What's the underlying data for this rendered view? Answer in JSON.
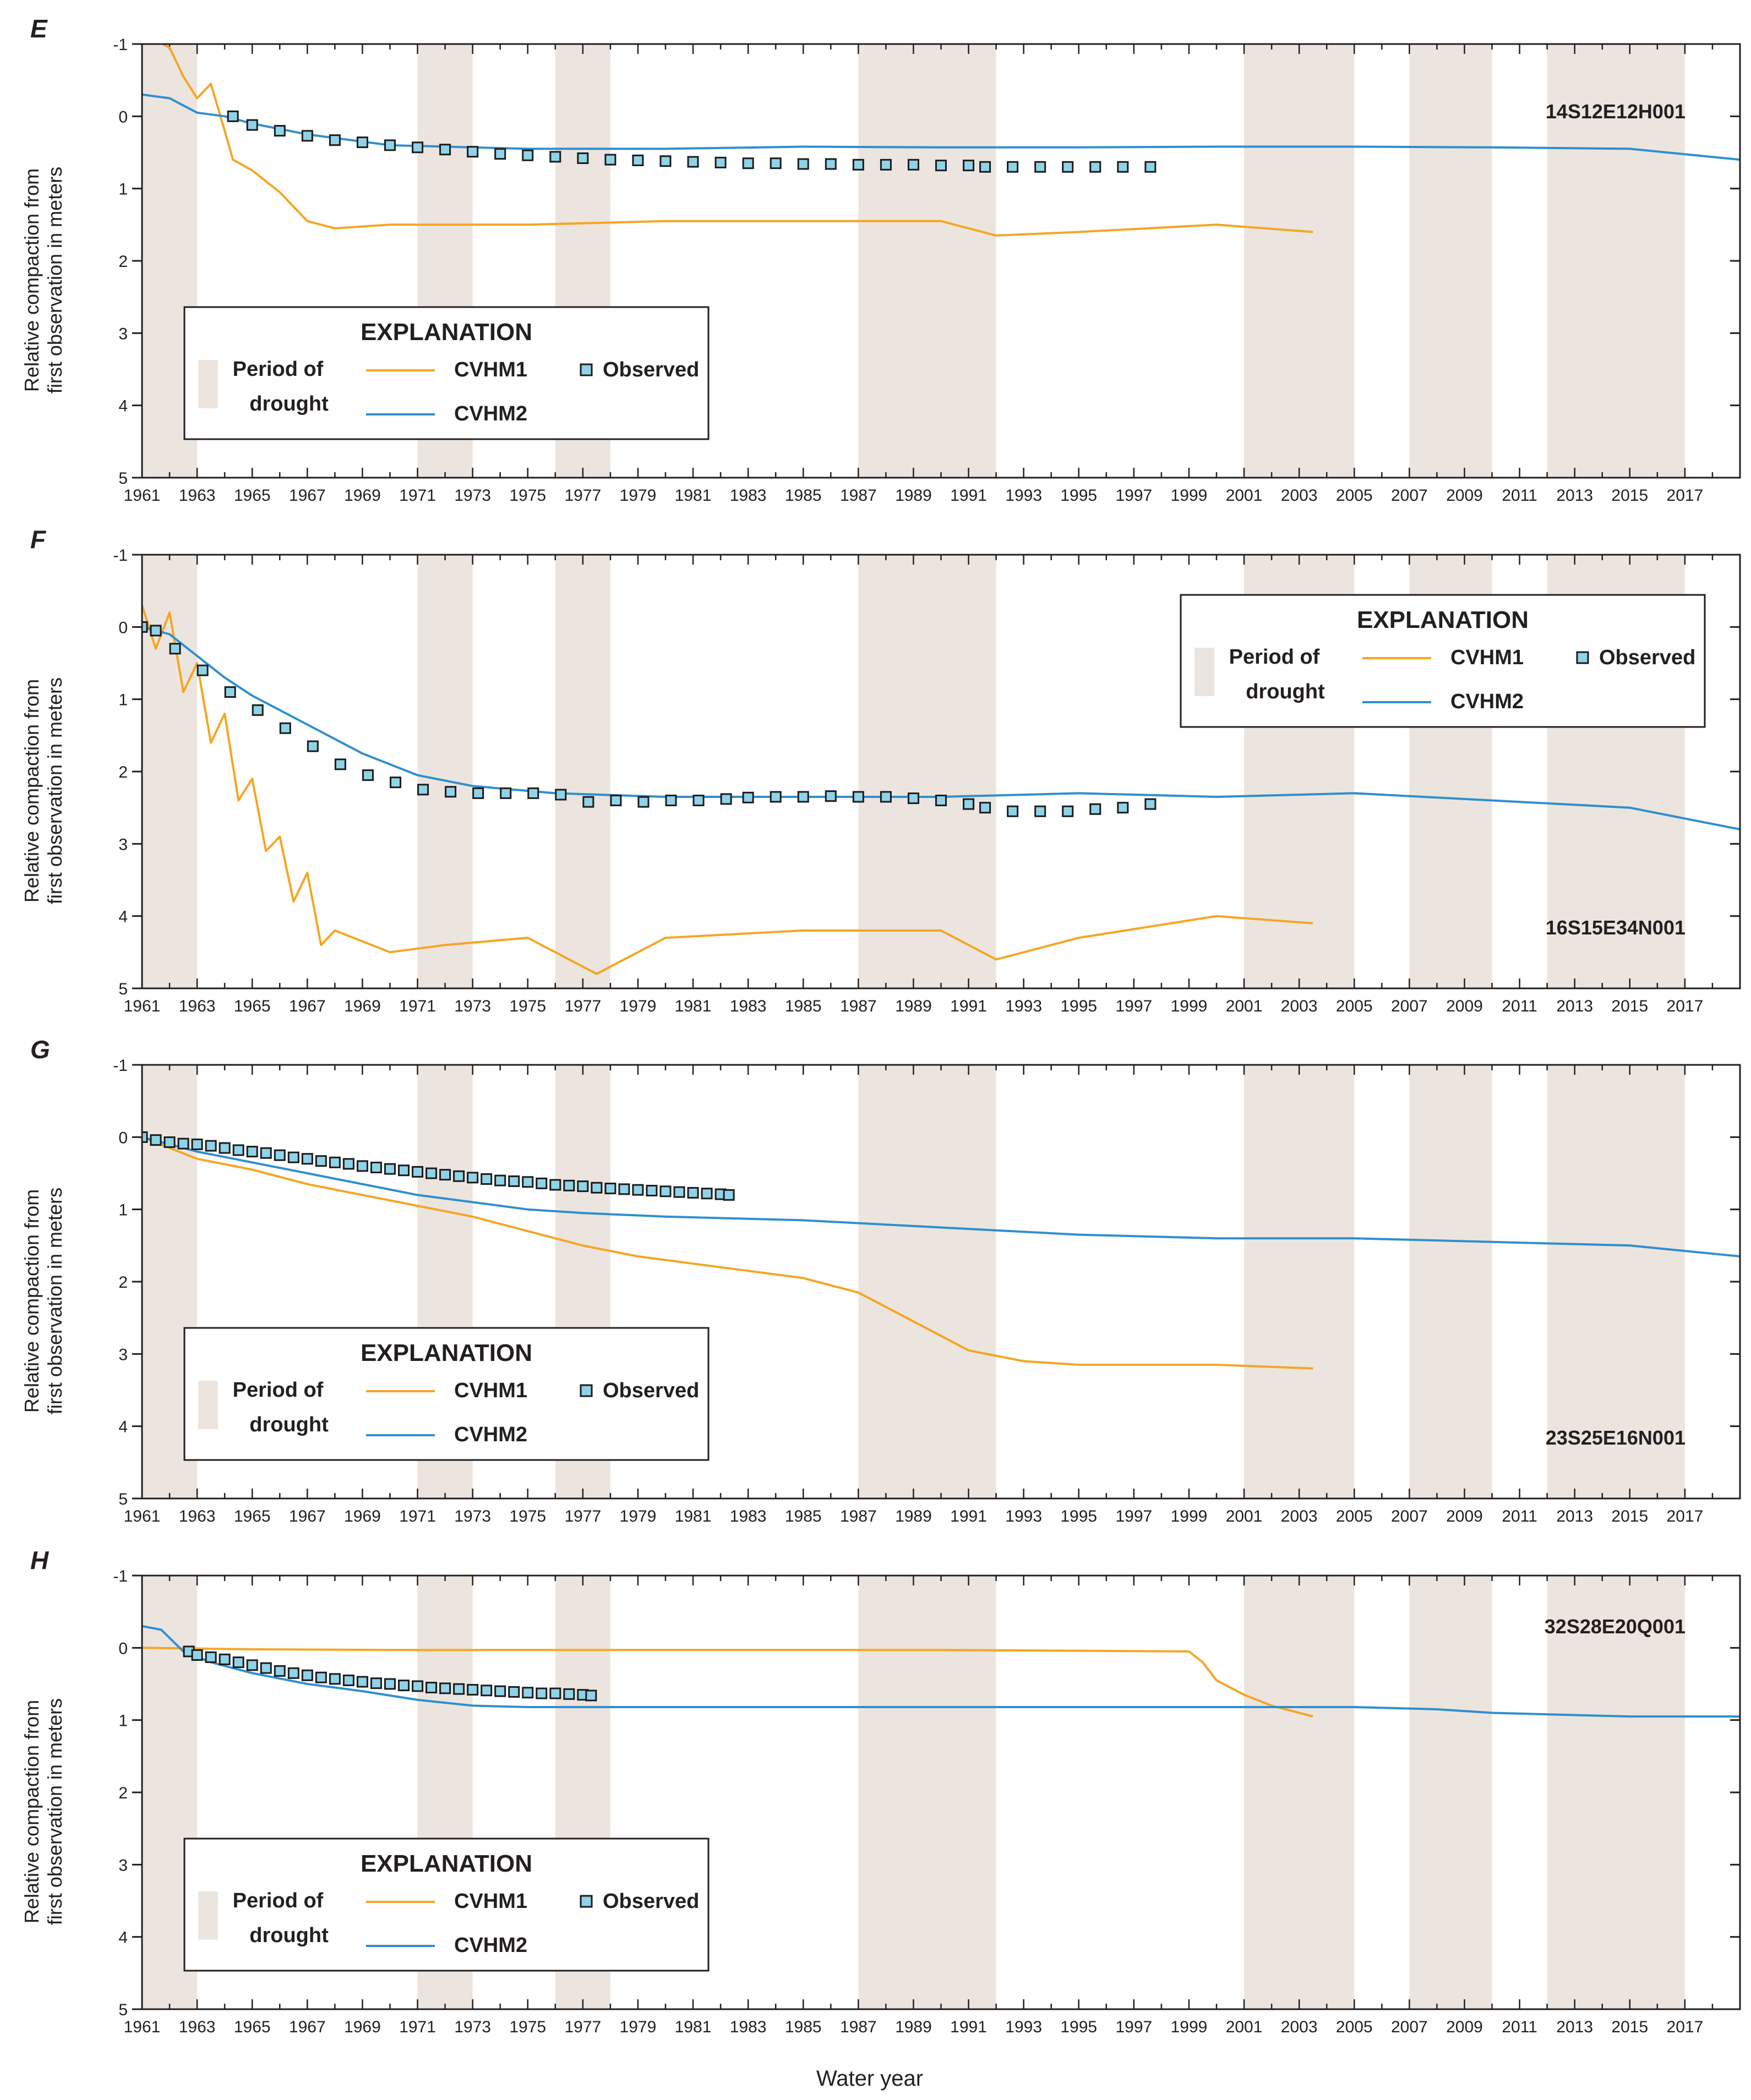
{
  "figure": {
    "xlabel": "Water year",
    "ylabel_line1": "Relative compaction from",
    "ylabel_line2": "first observation in meters"
  },
  "legend": {
    "title": "EXPLANATION",
    "drought_line1": "Period of",
    "drought_line2": "drought",
    "cvhm1": "CVHM1",
    "cvhm2": "CVHM2",
    "observed": "Observed"
  },
  "colors": {
    "cvhm1": "#f5a623",
    "cvhm2": "#2f8fcf",
    "observed_fill": "#8fd3e8",
    "observed_edge": "#1b1b1b",
    "drought": "#ece5df",
    "axis": "#231f20"
  },
  "chart_data": [
    {
      "type": "line",
      "panel": "E",
      "well": "14S12E12H001",
      "x_range": [
        1961,
        2019
      ],
      "ylim": [
        -1,
        5
      ],
      "y_ticks": [
        -1,
        0,
        1,
        2,
        3,
        4,
        5
      ],
      "y_inverted": true,
      "x_tick_labels": [
        "1961",
        "1963",
        "1965",
        "1967",
        "1969",
        "1971",
        "1973",
        "1975",
        "1977",
        "1979",
        "1981",
        "1983",
        "1985",
        "1987",
        "1989",
        "1991",
        "1993",
        "1995",
        "1997",
        "1999",
        "2001",
        "2003",
        "2005",
        "2007",
        "2009",
        "2011",
        "2013",
        "2015",
        "2017"
      ],
      "drought_periods": [
        [
          1961,
          1963
        ],
        [
          1971,
          1973
        ],
        [
          1976,
          1978
        ],
        [
          1987,
          1992
        ],
        [
          2001,
          2005
        ],
        [
          2007,
          2010
        ],
        [
          2012,
          2017
        ]
      ],
      "legend_position": "bottom-left",
      "series": [
        {
          "name": "CVHM1",
          "x": [
            1961,
            1961.5,
            1962,
            1962.5,
            1963,
            1963.5,
            1964,
            1964.3,
            1965,
            1966,
            1967,
            1968,
            1970,
            1975,
            1980,
            1985,
            1990,
            1992,
            1995,
            2000,
            2003.5
          ],
          "y": [
            -1.0,
            -1.05,
            -0.95,
            -0.55,
            -0.25,
            -0.45,
            0.2,
            0.6,
            0.75,
            1.05,
            1.45,
            1.55,
            1.5,
            1.5,
            1.45,
            1.45,
            1.45,
            1.65,
            1.6,
            1.5,
            1.6
          ]
        },
        {
          "name": "CVHM2",
          "x": [
            1961,
            1962,
            1963,
            1964,
            1965,
            1967,
            1970,
            1975,
            1980,
            1985,
            1990,
            1995,
            2000,
            2005,
            2010,
            2015,
            2019
          ],
          "y": [
            -0.3,
            -0.25,
            -0.05,
            0.0,
            0.1,
            0.25,
            0.4,
            0.45,
            0.45,
            0.42,
            0.43,
            0.43,
            0.42,
            0.42,
            0.43,
            0.45,
            0.6
          ]
        },
        {
          "name": "Observed",
          "x": [
            1964.3,
            1965,
            1966,
            1967,
            1968,
            1969,
            1970,
            1971,
            1972,
            1973,
            1974,
            1975,
            1976,
            1977,
            1978,
            1979,
            1980,
            1981,
            1982,
            1983,
            1984,
            1985,
            1986,
            1987,
            1988,
            1989,
            1990,
            1991,
            1991.6,
            1992.6,
            1993.6,
            1994.6,
            1995.6,
            1996.6,
            1997.6
          ],
          "y": [
            0.0,
            0.12,
            0.2,
            0.27,
            0.33,
            0.36,
            0.4,
            0.43,
            0.46,
            0.49,
            0.52,
            0.54,
            0.56,
            0.58,
            0.6,
            0.61,
            0.62,
            0.63,
            0.64,
            0.65,
            0.65,
            0.66,
            0.66,
            0.67,
            0.67,
            0.67,
            0.68,
            0.68,
            0.7,
            0.7,
            0.7,
            0.7,
            0.7,
            0.7,
            0.7
          ]
        }
      ]
    },
    {
      "type": "line",
      "panel": "F",
      "well": "16S15E34N001",
      "x_range": [
        1961,
        2019
      ],
      "ylim": [
        -1,
        5
      ],
      "y_ticks": [
        -1,
        0,
        1,
        2,
        3,
        4,
        5
      ],
      "y_inverted": true,
      "x_tick_labels": [
        "1961",
        "1963",
        "1965",
        "1967",
        "1969",
        "1971",
        "1973",
        "1975",
        "1977",
        "1979",
        "1981",
        "1983",
        "1985",
        "1987",
        "1989",
        "1991",
        "1993",
        "1995",
        "1997",
        "1999",
        "2001",
        "2003",
        "2005",
        "2007",
        "2009",
        "2011",
        "2013",
        "2015",
        "2017"
      ],
      "drought_periods": [
        [
          1961,
          1963
        ],
        [
          1971,
          1973
        ],
        [
          1976,
          1978
        ],
        [
          1987,
          1992
        ],
        [
          2001,
          2005
        ],
        [
          2007,
          2010
        ],
        [
          2012,
          2017
        ]
      ],
      "legend_position": "top-right",
      "series": [
        {
          "name": "CVHM1",
          "x": [
            1961,
            1961.5,
            1962,
            1962.5,
            1963,
            1963.5,
            1964,
            1964.5,
            1965,
            1965.5,
            1966,
            1966.5,
            1967,
            1967.5,
            1968,
            1970,
            1972,
            1975,
            1977.5,
            1980,
            1985,
            1990,
            1992,
            1995,
            2000,
            2003.5
          ],
          "y": [
            -0.3,
            0.3,
            -0.2,
            0.9,
            0.5,
            1.6,
            1.2,
            2.4,
            2.1,
            3.1,
            2.9,
            3.8,
            3.4,
            4.4,
            4.2,
            4.5,
            4.4,
            4.3,
            4.8,
            4.3,
            4.2,
            4.2,
            4.6,
            4.3,
            4.0,
            4.1
          ]
        },
        {
          "name": "CVHM2",
          "x": [
            1961,
            1962,
            1963,
            1964,
            1965,
            1967,
            1969,
            1971,
            1973,
            1976,
            1980,
            1985,
            1990,
            1995,
            2000,
            2005,
            2010,
            2015,
            2019
          ],
          "y": [
            0.0,
            0.1,
            0.4,
            0.7,
            0.95,
            1.35,
            1.75,
            2.05,
            2.2,
            2.3,
            2.35,
            2.35,
            2.35,
            2.3,
            2.35,
            2.3,
            2.4,
            2.5,
            2.8
          ]
        },
        {
          "name": "Observed",
          "x": [
            1961,
            1961.5,
            1962.2,
            1963.2,
            1964.2,
            1965.2,
            1966.2,
            1967.2,
            1968.2,
            1969.2,
            1970.2,
            1971.2,
            1972.2,
            1973.2,
            1974.2,
            1975.2,
            1976.2,
            1977.2,
            1978.2,
            1979.2,
            1980.2,
            1981.2,
            1982.2,
            1983,
            1984,
            1985,
            1986,
            1987,
            1988,
            1989,
            1990,
            1991,
            1991.6,
            1992.6,
            1993.6,
            1994.6,
            1995.6,
            1996.6,
            1997.6
          ],
          "y": [
            0.0,
            0.05,
            0.3,
            0.6,
            0.9,
            1.15,
            1.4,
            1.65,
            1.9,
            2.05,
            2.15,
            2.25,
            2.28,
            2.3,
            2.3,
            2.3,
            2.32,
            2.42,
            2.4,
            2.42,
            2.4,
            2.4,
            2.38,
            2.36,
            2.35,
            2.35,
            2.34,
            2.35,
            2.35,
            2.37,
            2.4,
            2.45,
            2.5,
            2.55,
            2.55,
            2.55,
            2.52,
            2.5,
            2.45
          ]
        }
      ]
    },
    {
      "type": "line",
      "panel": "G",
      "well": "23S25E16N001",
      "x_range": [
        1961,
        2019
      ],
      "ylim": [
        -1,
        5
      ],
      "y_ticks": [
        -1,
        0,
        1,
        2,
        3,
        4,
        5
      ],
      "y_inverted": true,
      "x_tick_labels": [
        "1961",
        "1963",
        "1965",
        "1967",
        "1969",
        "1971",
        "1973",
        "1975",
        "1977",
        "1979",
        "1981",
        "1983",
        "1985",
        "1987",
        "1989",
        "1991",
        "1993",
        "1995",
        "1997",
        "1999",
        "2001",
        "2003",
        "2005",
        "2007",
        "2009",
        "2011",
        "2013",
        "2015",
        "2017"
      ],
      "drought_periods": [
        [
          1961,
          1963
        ],
        [
          1971,
          1973
        ],
        [
          1976,
          1978
        ],
        [
          1987,
          1992
        ],
        [
          2001,
          2005
        ],
        [
          2007,
          2010
        ],
        [
          2012,
          2017
        ]
      ],
      "legend_position": "bottom-left",
      "series": [
        {
          "name": "CVHM1",
          "x": [
            1961,
            1963,
            1965,
            1967,
            1969,
            1971,
            1973,
            1975,
            1977,
            1979,
            1981,
            1983,
            1985,
            1987,
            1989,
            1991,
            1993,
            1995,
            1997,
            2000,
            2003.5
          ],
          "y": [
            0.0,
            0.3,
            0.45,
            0.65,
            0.8,
            0.95,
            1.1,
            1.3,
            1.5,
            1.65,
            1.75,
            1.85,
            1.95,
            2.15,
            2.55,
            2.95,
            3.1,
            3.15,
            3.15,
            3.15,
            3.2
          ]
        },
        {
          "name": "CVHM2",
          "x": [
            1961,
            1963,
            1965,
            1967,
            1969,
            1971,
            1973,
            1975,
            1977,
            1980,
            1985,
            1990,
            1995,
            2000,
            2005,
            2010,
            2015,
            2019
          ],
          "y": [
            0.0,
            0.2,
            0.35,
            0.5,
            0.65,
            0.8,
            0.9,
            1.0,
            1.05,
            1.1,
            1.15,
            1.25,
            1.35,
            1.4,
            1.4,
            1.45,
            1.5,
            1.65
          ]
        },
        {
          "name": "Observed",
          "x": [
            1961,
            1961.5,
            1962,
            1962.5,
            1963,
            1963.5,
            1964,
            1964.5,
            1965,
            1965.5,
            1966,
            1966.5,
            1967,
            1967.5,
            1968,
            1968.5,
            1969,
            1969.5,
            1970,
            1970.5,
            1971,
            1971.5,
            1972,
            1972.5,
            1973,
            1973.5,
            1974,
            1974.5,
            1975,
            1975.5,
            1976,
            1976.5,
            1977,
            1977.5,
            1978,
            1978.5,
            1979,
            1979.5,
            1980,
            1980.5,
            1981,
            1981.5,
            1982,
            1982.3
          ],
          "y": [
            0.0,
            0.04,
            0.07,
            0.09,
            0.1,
            0.12,
            0.15,
            0.18,
            0.2,
            0.22,
            0.25,
            0.28,
            0.3,
            0.33,
            0.35,
            0.37,
            0.4,
            0.42,
            0.44,
            0.46,
            0.48,
            0.5,
            0.52,
            0.54,
            0.56,
            0.58,
            0.6,
            0.61,
            0.62,
            0.64,
            0.66,
            0.67,
            0.68,
            0.7,
            0.71,
            0.72,
            0.73,
            0.74,
            0.75,
            0.76,
            0.77,
            0.78,
            0.79,
            0.8
          ]
        }
      ]
    },
    {
      "type": "line",
      "panel": "H",
      "well": "32S28E20Q001",
      "x_range": [
        1961,
        2019
      ],
      "ylim": [
        -1,
        5
      ],
      "y_ticks": [
        -1,
        0,
        1,
        2,
        3,
        4,
        5
      ],
      "y_inverted": true,
      "x_tick_labels": [
        "1961",
        "1963",
        "1965",
        "1967",
        "1969",
        "1971",
        "1973",
        "1975",
        "1977",
        "1979",
        "1981",
        "1983",
        "1985",
        "1987",
        "1989",
        "1991",
        "1993",
        "1995",
        "1997",
        "1999",
        "2001",
        "2003",
        "2005",
        "2007",
        "2009",
        "2011",
        "2013",
        "2015",
        "2017"
      ],
      "drought_periods": [
        [
          1961,
          1963
        ],
        [
          1971,
          1973
        ],
        [
          1976,
          1978
        ],
        [
          1987,
          1992
        ],
        [
          2001,
          2005
        ],
        [
          2007,
          2010
        ],
        [
          2012,
          2017
        ]
      ],
      "legend_position": "bottom-left",
      "series": [
        {
          "name": "CVHM1",
          "x": [
            1961,
            1965,
            1970,
            1975,
            1980,
            1985,
            1990,
            1995,
            1999,
            1999.5,
            2000,
            2001,
            2002,
            2003.5
          ],
          "y": [
            0.0,
            0.02,
            0.03,
            0.03,
            0.03,
            0.03,
            0.03,
            0.04,
            0.05,
            0.2,
            0.45,
            0.65,
            0.8,
            0.95
          ]
        },
        {
          "name": "CVHM2",
          "x": [
            1961,
            1961.7,
            1962.5,
            1963.5,
            1965,
            1967,
            1969,
            1971,
            1973,
            1975,
            1980,
            1985,
            1990,
            1995,
            2000,
            2005,
            2008,
            2010,
            2015,
            2019
          ],
          "y": [
            -0.3,
            -0.25,
            0.05,
            0.2,
            0.35,
            0.5,
            0.6,
            0.72,
            0.8,
            0.82,
            0.82,
            0.82,
            0.82,
            0.82,
            0.82,
            0.82,
            0.85,
            0.9,
            0.95,
            0.95
          ]
        },
        {
          "name": "Observed",
          "x": [
            1962.7,
            1963,
            1963.5,
            1964,
            1964.5,
            1965,
            1965.5,
            1966,
            1966.5,
            1967,
            1967.5,
            1968,
            1968.5,
            1969,
            1969.5,
            1970,
            1970.5,
            1971,
            1971.5,
            1972,
            1972.5,
            1973,
            1973.5,
            1974,
            1974.5,
            1975,
            1975.5,
            1976,
            1976.5,
            1977,
            1977.3
          ],
          "y": [
            0.05,
            0.1,
            0.13,
            0.16,
            0.2,
            0.24,
            0.28,
            0.32,
            0.35,
            0.38,
            0.41,
            0.43,
            0.45,
            0.47,
            0.49,
            0.5,
            0.52,
            0.53,
            0.55,
            0.56,
            0.57,
            0.58,
            0.59,
            0.6,
            0.61,
            0.62,
            0.63,
            0.63,
            0.64,
            0.65,
            0.66
          ]
        }
      ]
    }
  ]
}
